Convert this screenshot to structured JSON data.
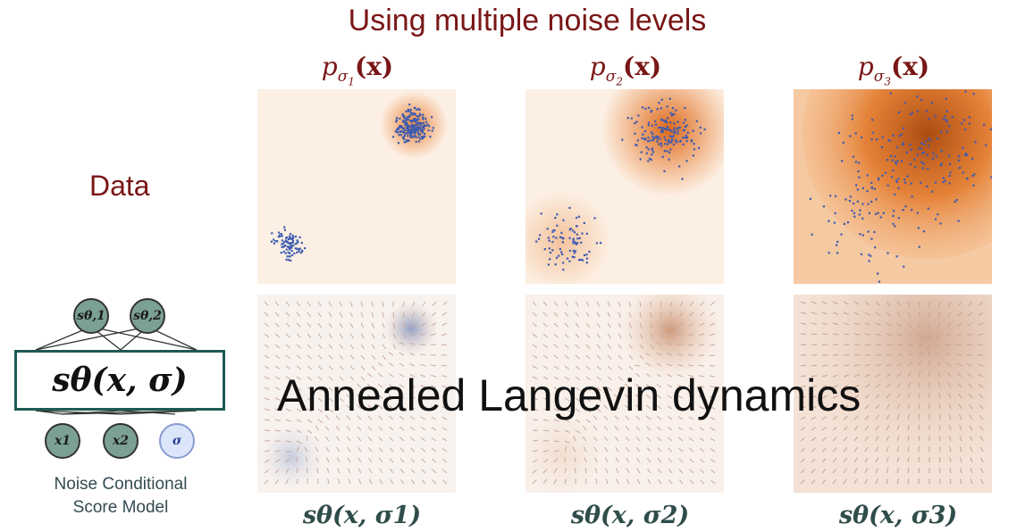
{
  "title": "Using multiple noise levels",
  "row_label": "Data",
  "overlay_text": "Annealed Langevin dynamics",
  "panels": [
    {
      "density_label": "p",
      "density_sub": "σ",
      "density_sub_index": "1",
      "density_arg": "(x)",
      "score_label": "sθ(x, σ1)"
    },
    {
      "density_label": "p",
      "density_sub": "σ",
      "density_sub_index": "2",
      "density_arg": "(x)",
      "score_label": "sθ(x, σ2)"
    },
    {
      "density_label": "p",
      "density_sub": "σ",
      "density_sub_index": "3",
      "density_arg": "(x)",
      "score_label": "sθ(x, σ3)"
    }
  ],
  "model": {
    "box_label": "sθ(x, σ)",
    "outputs": [
      "sθ,1",
      "sθ,2"
    ],
    "inputs": [
      "x1",
      "x2",
      "σ"
    ],
    "caption_line1": "Noise Conditional",
    "caption_line2": "Score Model"
  },
  "colors": {
    "title": "#7a1616",
    "accent_green": "#2f4d4a",
    "density": "#e8731f",
    "points": "#3d5bb0",
    "background_panel": "#fcefe3"
  }
}
